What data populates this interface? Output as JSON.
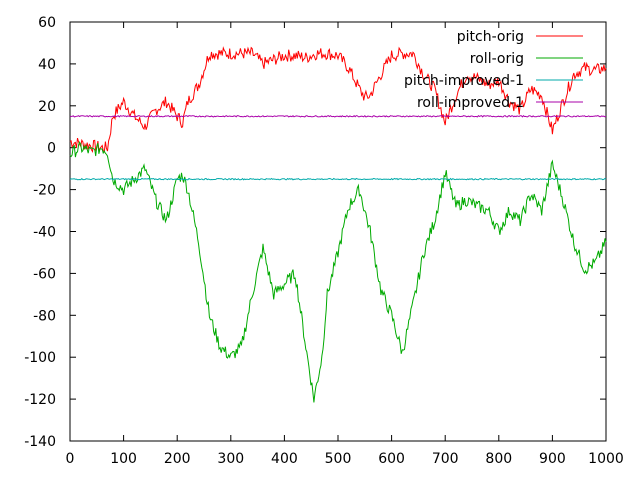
{
  "chart_data": {
    "type": "line",
    "title": "",
    "xlabel": "",
    "ylabel": "",
    "xlim": [
      0,
      1000
    ],
    "ylim": [
      -140,
      60
    ],
    "x_ticks": [
      0,
      100,
      200,
      300,
      400,
      500,
      600,
      700,
      800,
      900,
      1000
    ],
    "y_ticks": [
      -140,
      -120,
      -100,
      -80,
      -60,
      -40,
      -20,
      0,
      20,
      40,
      60
    ],
    "grid": false,
    "legend_position": "top-right",
    "series": [
      {
        "name": "pitch-orig",
        "color": "#ff0000",
        "x": [
          0,
          20,
          40,
          60,
          70,
          80,
          100,
          120,
          140,
          160,
          180,
          200,
          210,
          220,
          240,
          260,
          280,
          300,
          320,
          340,
          360,
          380,
          400,
          420,
          440,
          460,
          480,
          500,
          520,
          540,
          550,
          560,
          580,
          600,
          620,
          640,
          660,
          680,
          700,
          720,
          740,
          760,
          780,
          800,
          820,
          840,
          860,
          880,
          900,
          920,
          940,
          960,
          980,
          1000
        ],
        "y": [
          3,
          2,
          1,
          0,
          0,
          15,
          22,
          15,
          10,
          18,
          22,
          15,
          12,
          22,
          30,
          45,
          45,
          45,
          45,
          45,
          40,
          42,
          44,
          44,
          43,
          45,
          45,
          44,
          38,
          28,
          24,
          25,
          35,
          44,
          45,
          45,
          35,
          28,
          12,
          25,
          35,
          33,
          30,
          32,
          22,
          18,
          28,
          25,
          8,
          22,
          35,
          38,
          37,
          38
        ]
      },
      {
        "name": "roll-orig",
        "color": "#00aa00",
        "x": [
          0,
          20,
          40,
          60,
          70,
          80,
          100,
          120,
          140,
          160,
          180,
          200,
          210,
          220,
          240,
          260,
          280,
          300,
          320,
          340,
          360,
          380,
          400,
          420,
          440,
          455,
          470,
          480,
          500,
          520,
          540,
          560,
          580,
          600,
          620,
          640,
          660,
          680,
          700,
          720,
          740,
          760,
          780,
          800,
          820,
          840,
          860,
          880,
          900,
          920,
          940,
          960,
          980,
          1000
        ],
        "y": [
          -3,
          0,
          -2,
          0,
          -2,
          -15,
          -20,
          -15,
          -10,
          -25,
          -35,
          -15,
          -13,
          -20,
          -45,
          -80,
          -95,
          -100,
          -95,
          -70,
          -48,
          -70,
          -65,
          -60,
          -95,
          -120,
          -100,
          -70,
          -50,
          -28,
          -20,
          -40,
          -68,
          -80,
          -98,
          -75,
          -50,
          -35,
          -12,
          -28,
          -25,
          -28,
          -30,
          -40,
          -30,
          -35,
          -22,
          -30,
          -8,
          -25,
          -45,
          -58,
          -55,
          -45
        ]
      },
      {
        "name": "pitch-improved-1",
        "color": "#00aaaa",
        "x": [
          0,
          1000
        ],
        "y": [
          -15,
          -15
        ]
      },
      {
        "name": "roll-improved-1",
        "color": "#aa00aa",
        "x": [
          0,
          1000
        ],
        "y": [
          15,
          15
        ]
      }
    ]
  }
}
